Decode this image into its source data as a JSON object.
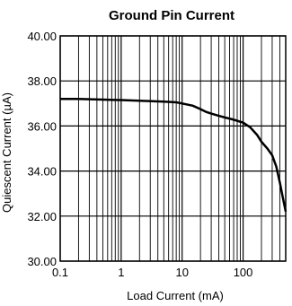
{
  "chart_data": {
    "type": "line",
    "title": "Ground Pin Current",
    "xlabel": "Load Current (mA)",
    "ylabel": "Quiescent Current (µA)",
    "x_scale": "log",
    "xlim": [
      0.1,
      500
    ],
    "ylim": [
      30,
      40
    ],
    "x_ticks": [
      {
        "value": 0.1,
        "label": "0.1"
      },
      {
        "value": 1,
        "label": "1"
      },
      {
        "value": 10,
        "label": "10"
      },
      {
        "value": 100,
        "label": "100"
      }
    ],
    "y_ticks": [
      {
        "value": 30,
        "label": "30.00"
      },
      {
        "value": 32,
        "label": "32.00"
      },
      {
        "value": 34,
        "label": "34.00"
      },
      {
        "value": 36,
        "label": "36.00"
      },
      {
        "value": 38,
        "label": "38.00"
      },
      {
        "value": 40,
        "label": "40.00"
      }
    ],
    "grid": true,
    "series": [
      {
        "x": [
          0.1,
          0.2,
          0.5,
          1,
          2,
          5,
          8,
          10,
          15,
          20,
          25,
          30,
          40,
          50,
          70,
          100,
          130,
          170,
          200,
          250,
          300,
          350,
          400,
          450,
          500
        ],
        "y": [
          37.2,
          37.2,
          37.17,
          37.15,
          37.12,
          37.08,
          37.05,
          37.0,
          36.9,
          36.75,
          36.62,
          36.55,
          36.45,
          36.38,
          36.28,
          36.15,
          35.95,
          35.6,
          35.3,
          35.0,
          34.7,
          34.2,
          33.5,
          32.8,
          32.2
        ]
      }
    ]
  }
}
